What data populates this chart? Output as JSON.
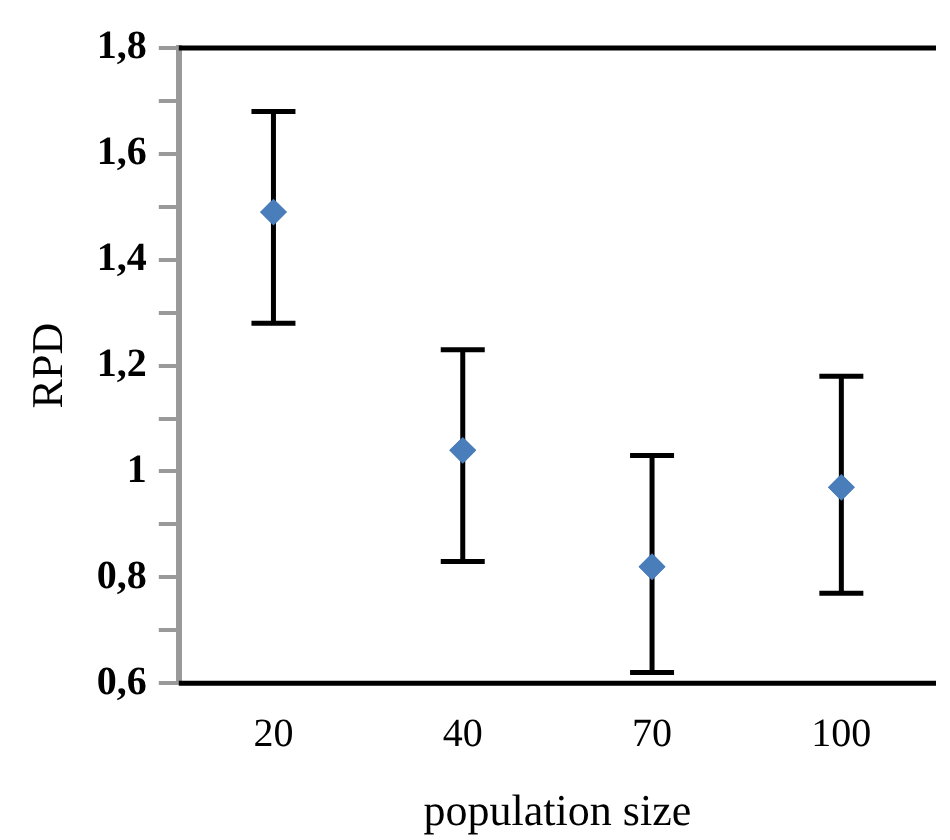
{
  "chart_data": {
    "type": "scatter",
    "xlabel": "population size",
    "ylabel": "RPD",
    "categories": [
      "20",
      "40",
      "70",
      "100"
    ],
    "series": [
      {
        "color": "#4a7ebb",
        "values": [
          1.49,
          1.04,
          0.82,
          0.97
        ],
        "errors": [
          [
            1.28,
            1.68
          ],
          [
            0.83,
            1.23
          ],
          [
            0.62,
            1.03
          ],
          [
            0.77,
            1.18
          ]
        ]
      }
    ],
    "ylim": [
      0.6,
      1.8
    ],
    "yticks": [
      {
        "value": 0.6,
        "label": "0,6"
      },
      {
        "value": 0.7,
        "label": null
      },
      {
        "value": 0.8,
        "label": "0,8"
      },
      {
        "value": 0.9,
        "label": null
      },
      1,
      {
        "value": 1.1,
        "label": null
      },
      {
        "value": 1.2,
        "label": "1,2"
      },
      {
        "value": 1.3,
        "label": null
      },
      {
        "value": 1.4,
        "label": "1,4"
      },
      {
        "value": 1.5,
        "label": null
      },
      {
        "value": 1.6,
        "label": "1,6"
      },
      {
        "value": 1.7,
        "label": null
      },
      {
        "value": 1.8,
        "label": "1,8"
      }
    ],
    "grid": false,
    "legend": false,
    "marker": "diamond"
  }
}
